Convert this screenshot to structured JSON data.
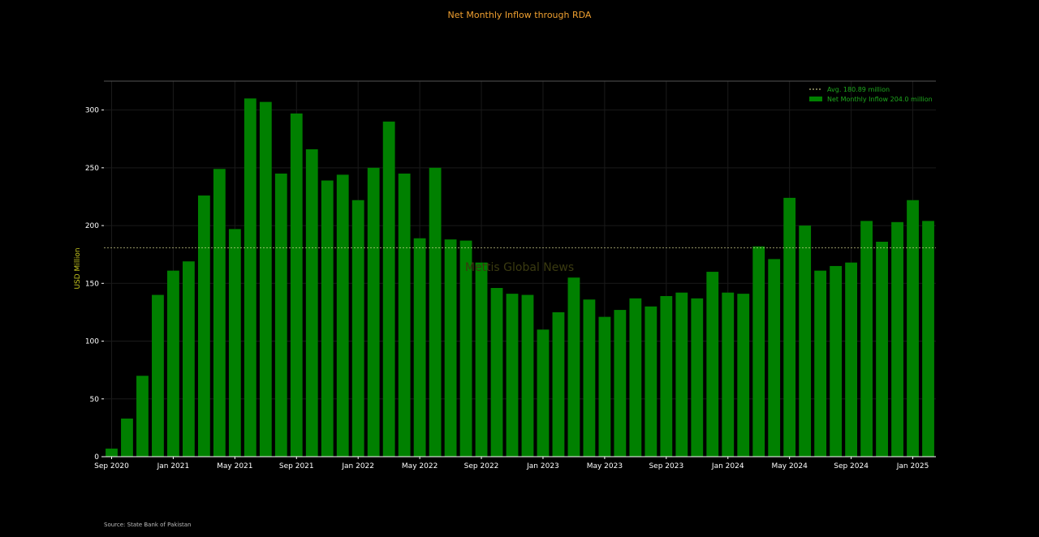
{
  "chart_data": {
    "type": "bar",
    "title": "Net Monthly Inflow through RDA",
    "ylabel": "USD Million",
    "xlabel": "",
    "ylim": [
      0,
      325
    ],
    "yticks": [
      0,
      50,
      100,
      150,
      200,
      250,
      300
    ],
    "grid": true,
    "legend_position": "top-right",
    "watermark": "Mettis Global News",
    "source": "Source: State Bank of Pakistan",
    "x_tick_labels": [
      "Sep 2020",
      "Jan 2021",
      "May 2021",
      "Sep 2021",
      "Jan 2022",
      "May 2022",
      "Sep 2022",
      "Jan 2023",
      "May 2023",
      "Sep 2023",
      "Jan 2024",
      "May 2024",
      "Sep 2024",
      "Jan 2025"
    ],
    "categories": [
      "2020-09",
      "2020-10",
      "2020-11",
      "2020-12",
      "2021-01",
      "2021-02",
      "2021-03",
      "2021-04",
      "2021-05",
      "2021-06",
      "2021-07",
      "2021-08",
      "2021-09",
      "2021-10",
      "2021-11",
      "2021-12",
      "2022-01",
      "2022-02",
      "2022-03",
      "2022-04",
      "2022-05",
      "2022-06",
      "2022-07",
      "2022-08",
      "2022-09",
      "2022-10",
      "2022-11",
      "2022-12",
      "2023-01",
      "2023-02",
      "2023-03",
      "2023-04",
      "2023-05",
      "2023-06",
      "2023-07",
      "2023-08",
      "2023-09",
      "2023-10",
      "2023-11",
      "2023-12",
      "2024-01",
      "2024-02",
      "2024-03",
      "2024-04",
      "2024-05",
      "2024-06",
      "2024-07",
      "2024-08",
      "2024-09",
      "2024-10",
      "2024-11",
      "2024-12",
      "2025-01",
      "2025-02"
    ],
    "series": [
      {
        "name": "Net Monthly Inflow 204.0 million",
        "color": "#008000",
        "values": [
          7,
          33,
          70,
          140,
          161,
          169,
          226,
          249,
          197,
          310,
          307,
          245,
          297,
          266,
          239,
          244,
          222,
          250,
          290,
          245,
          189,
          250,
          188,
          187,
          168,
          146,
          141,
          140,
          110,
          125,
          155,
          136,
          121,
          127,
          137,
          130,
          139,
          142,
          137,
          160,
          142,
          141,
          182,
          171,
          224,
          200,
          161,
          165,
          168,
          204,
          186,
          203,
          222,
          204
        ]
      }
    ],
    "average": {
      "name": "Avg. 180.89 million",
      "value": 180.89,
      "color": "#e8e8a0"
    }
  }
}
